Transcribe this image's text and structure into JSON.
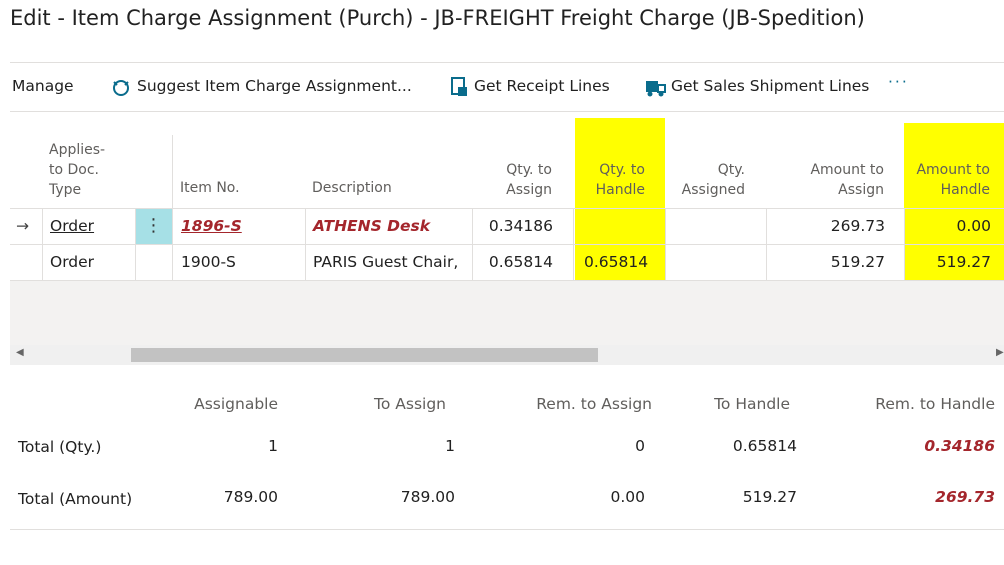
{
  "header": {
    "title": "Edit - Item Charge Assignment (Purch) - JB-FREIGHT Freight Charge (JB-Spedition)"
  },
  "toolbar": {
    "items": [
      "Manage",
      "Suggest Item Charge Assignment...",
      "Get Receipt Lines",
      "Get Sales Shipment Lines"
    ]
  },
  "table": {
    "columns": [
      "Applies-to Doc. Type",
      "Item No.",
      "Description",
      "Qty. to Assign",
      "Qty. to Handle",
      "Qty. Assigned",
      "Amount to Assign",
      "Amount to Handle"
    ],
    "rows": [
      {
        "doc_type": "Order",
        "item_no": "1896-S",
        "description": "ATHENS Desk",
        "qty_to_assign": "0.34186",
        "amount_to_assign": "269.73",
        "amount_to_handle": "0.00"
      },
      {
        "doc_type": "Order",
        "item_no": "1900-S",
        "description": "PARIS Guest Chair,",
        "qty_to_assign": "0.65814",
        "qty_to_handle": "0.65814",
        "amount_to_assign": "519.27",
        "amount_to_handle": "519.27"
      }
    ]
  },
  "totals": {
    "columns": [
      "Assignable",
      "To Assign",
      "Rem. to Assign",
      "To Handle",
      "Rem. to Handle"
    ],
    "rows": [
      {
        "label": "Total (Qty.)",
        "values": [
          "1",
          "1",
          "0",
          "0.65814",
          "0.34186"
        ]
      },
      {
        "label": "Total (Amount)",
        "values": [
          "789.00",
          "789.00",
          "0.00",
          "519.27",
          "269.73"
        ]
      }
    ]
  }
}
